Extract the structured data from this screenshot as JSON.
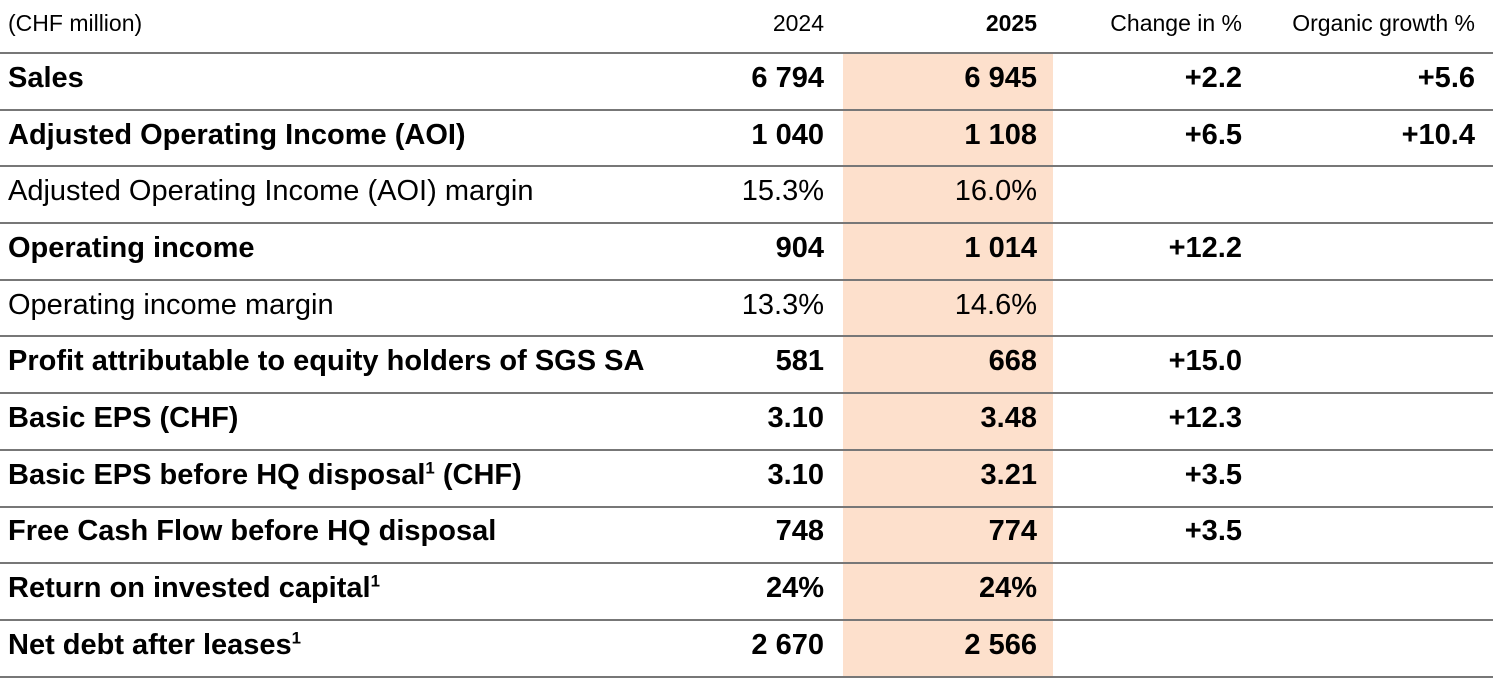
{
  "colors": {
    "background": "#ffffff",
    "text": "#000000",
    "border": "#777777",
    "highlight": "#fde0cc"
  },
  "table": {
    "unit_label": "(CHF million)",
    "columns": {
      "y2024": "2024",
      "y2025": "2025",
      "change": "Change in %",
      "organic": "Organic growth %"
    },
    "rows": [
      {
        "label": "Sales",
        "sup": "",
        "label_suffix": "",
        "bold": true,
        "v2024": "6 794",
        "v2025": "6 945",
        "change": "+2.2",
        "organic": "+5.6"
      },
      {
        "label": "Adjusted Operating Income (AOI)",
        "sup": "",
        "label_suffix": "",
        "bold": true,
        "v2024": "1 040",
        "v2025": "1 108",
        "change": "+6.5",
        "organic": "+10.4"
      },
      {
        "label": "Adjusted Operating Income (AOI) margin",
        "sup": "",
        "label_suffix": "",
        "bold": false,
        "v2024": "15.3%",
        "v2025": "16.0%",
        "change": "",
        "organic": ""
      },
      {
        "label": "Operating income",
        "sup": "",
        "label_suffix": "",
        "bold": true,
        "v2024": "904",
        "v2025": "1 014",
        "change": "+12.2",
        "organic": ""
      },
      {
        "label": "Operating income margin",
        "sup": "",
        "label_suffix": "",
        "bold": false,
        "v2024": "13.3%",
        "v2025": "14.6%",
        "change": "",
        "organic": ""
      },
      {
        "label": "Profit attributable to equity holders of SGS SA",
        "sup": "",
        "label_suffix": "",
        "bold": true,
        "v2024": "581",
        "v2025": "668",
        "change": "+15.0",
        "organic": ""
      },
      {
        "label": "Basic EPS (CHF)",
        "sup": "",
        "label_suffix": "",
        "bold": true,
        "v2024": "3.10",
        "v2025": "3.48",
        "change": "+12.3",
        "organic": ""
      },
      {
        "label": "Basic EPS before HQ disposal",
        "sup": "1",
        "label_suffix": " (CHF)",
        "bold": true,
        "v2024": "3.10",
        "v2025": "3.21",
        "change": "+3.5",
        "organic": ""
      },
      {
        "label": "Free Cash Flow before HQ disposal",
        "sup": "",
        "label_suffix": "",
        "bold": true,
        "v2024": "748",
        "v2025": "774",
        "change": "+3.5",
        "organic": ""
      },
      {
        "label": "Return on invested capital",
        "sup": "1",
        "label_suffix": "",
        "bold": true,
        "v2024": "24%",
        "v2025": "24%",
        "change": "",
        "organic": ""
      },
      {
        "label": "Net debt after leases",
        "sup": "1",
        "label_suffix": "",
        "bold": true,
        "v2024": "2 670",
        "v2025": "2 566",
        "change": "",
        "organic": ""
      }
    ]
  }
}
